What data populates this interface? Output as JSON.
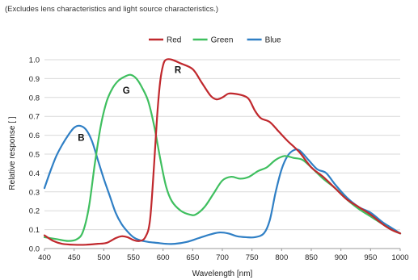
{
  "note": "(Excludes lens characteristics and light source characteristics.)",
  "chart_data": {
    "type": "line",
    "xlabel": "Wavelength [nm]",
    "ylabel": "Relative response [ ]",
    "xlim": [
      400,
      1000
    ],
    "ylim": [
      0,
      1.0
    ],
    "xticks": [
      "400",
      "450",
      "500",
      "550",
      "600",
      "650",
      "700",
      "750",
      "800",
      "850",
      "900",
      "950",
      "1000"
    ],
    "yticks": [
      "0.0",
      "0.1",
      "0.2",
      "0.3",
      "0.4",
      "0.5",
      "0.6",
      "0.7",
      "0.8",
      "0.9",
      "1.0"
    ],
    "legend_position": "top-center",
    "grid": true,
    "series": [
      {
        "name": "Red",
        "color": "#c0282d",
        "label": "R",
        "points": [
          [
            400,
            0.07
          ],
          [
            415,
            0.04
          ],
          [
            430,
            0.025
          ],
          [
            450,
            0.02
          ],
          [
            470,
            0.02
          ],
          [
            490,
            0.025
          ],
          [
            505,
            0.03
          ],
          [
            520,
            0.055
          ],
          [
            530,
            0.065
          ],
          [
            540,
            0.06
          ],
          [
            550,
            0.045
          ],
          [
            560,
            0.04
          ],
          [
            570,
            0.06
          ],
          [
            578,
            0.15
          ],
          [
            585,
            0.45
          ],
          [
            590,
            0.7
          ],
          [
            595,
            0.88
          ],
          [
            600,
            0.97
          ],
          [
            605,
            1.0
          ],
          [
            615,
            1.0
          ],
          [
            630,
            0.98
          ],
          [
            650,
            0.95
          ],
          [
            665,
            0.88
          ],
          [
            680,
            0.81
          ],
          [
            690,
            0.79
          ],
          [
            700,
            0.8
          ],
          [
            710,
            0.82
          ],
          [
            720,
            0.82
          ],
          [
            735,
            0.81
          ],
          [
            745,
            0.79
          ],
          [
            755,
            0.73
          ],
          [
            765,
            0.69
          ],
          [
            780,
            0.67
          ],
          [
            795,
            0.62
          ],
          [
            810,
            0.57
          ],
          [
            830,
            0.51
          ],
          [
            850,
            0.43
          ],
          [
            870,
            0.38
          ],
          [
            890,
            0.32
          ],
          [
            910,
            0.26
          ],
          [
            930,
            0.22
          ],
          [
            950,
            0.18
          ],
          [
            970,
            0.13
          ],
          [
            985,
            0.1
          ],
          [
            1000,
            0.08
          ]
        ]
      },
      {
        "name": "Green",
        "color": "#3fbf5f",
        "label": "G",
        "points": [
          [
            400,
            0.06
          ],
          [
            420,
            0.05
          ],
          [
            440,
            0.04
          ],
          [
            455,
            0.05
          ],
          [
            465,
            0.09
          ],
          [
            475,
            0.22
          ],
          [
            485,
            0.45
          ],
          [
            495,
            0.65
          ],
          [
            505,
            0.78
          ],
          [
            515,
            0.85
          ],
          [
            525,
            0.89
          ],
          [
            535,
            0.91
          ],
          [
            545,
            0.92
          ],
          [
            555,
            0.9
          ],
          [
            565,
            0.85
          ],
          [
            575,
            0.78
          ],
          [
            585,
            0.65
          ],
          [
            595,
            0.48
          ],
          [
            605,
            0.33
          ],
          [
            615,
            0.25
          ],
          [
            630,
            0.2
          ],
          [
            645,
            0.18
          ],
          [
            655,
            0.18
          ],
          [
            670,
            0.22
          ],
          [
            685,
            0.29
          ],
          [
            700,
            0.36
          ],
          [
            715,
            0.38
          ],
          [
            730,
            0.37
          ],
          [
            745,
            0.38
          ],
          [
            760,
            0.41
          ],
          [
            775,
            0.43
          ],
          [
            790,
            0.47
          ],
          [
            805,
            0.49
          ],
          [
            820,
            0.48
          ],
          [
            835,
            0.47
          ],
          [
            850,
            0.43
          ],
          [
            870,
            0.37
          ],
          [
            890,
            0.32
          ],
          [
            910,
            0.26
          ],
          [
            930,
            0.21
          ],
          [
            950,
            0.17
          ],
          [
            970,
            0.13
          ],
          [
            985,
            0.1
          ],
          [
            1000,
            0.08
          ]
        ]
      },
      {
        "name": "Blue",
        "color": "#2f7fc5",
        "label": "B",
        "points": [
          [
            400,
            0.32
          ],
          [
            410,
            0.41
          ],
          [
            420,
            0.49
          ],
          [
            430,
            0.55
          ],
          [
            440,
            0.6
          ],
          [
            450,
            0.64
          ],
          [
            460,
            0.65
          ],
          [
            470,
            0.63
          ],
          [
            480,
            0.57
          ],
          [
            490,
            0.47
          ],
          [
            500,
            0.37
          ],
          [
            510,
            0.28
          ],
          [
            520,
            0.19
          ],
          [
            530,
            0.13
          ],
          [
            540,
            0.09
          ],
          [
            550,
            0.06
          ],
          [
            560,
            0.045
          ],
          [
            575,
            0.035
          ],
          [
            590,
            0.03
          ],
          [
            605,
            0.025
          ],
          [
            620,
            0.025
          ],
          [
            640,
            0.035
          ],
          [
            660,
            0.055
          ],
          [
            680,
            0.075
          ],
          [
            695,
            0.085
          ],
          [
            710,
            0.08
          ],
          [
            725,
            0.065
          ],
          [
            740,
            0.06
          ],
          [
            755,
            0.06
          ],
          [
            770,
            0.08
          ],
          [
            780,
            0.15
          ],
          [
            790,
            0.3
          ],
          [
            800,
            0.42
          ],
          [
            810,
            0.49
          ],
          [
            820,
            0.52
          ],
          [
            830,
            0.52
          ],
          [
            845,
            0.47
          ],
          [
            860,
            0.42
          ],
          [
            875,
            0.4
          ],
          [
            890,
            0.34
          ],
          [
            910,
            0.27
          ],
          [
            930,
            0.22
          ],
          [
            950,
            0.19
          ],
          [
            970,
            0.14
          ],
          [
            985,
            0.11
          ],
          [
            1000,
            0.08
          ]
        ]
      }
    ]
  }
}
